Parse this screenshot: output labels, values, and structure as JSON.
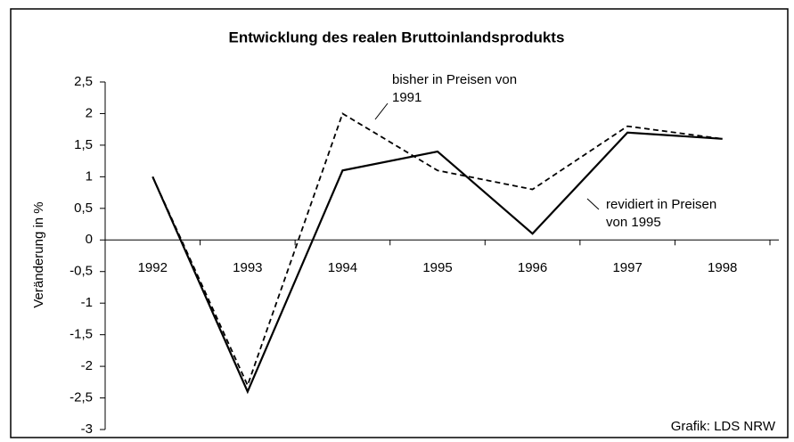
{
  "chart_data": {
    "type": "line",
    "title": "Entwicklung des realen Bruttoinlandsprodukts",
    "y_label": "Veränderung in %",
    "source": "Grafik: LDS NRW",
    "categories": [
      "1992",
      "1993",
      "1994",
      "1995",
      "1996",
      "1997",
      "1998"
    ],
    "series": [
      {
        "name": "bisher in Preisen von 1991",
        "color": "#000000",
        "style": "dashed",
        "values": [
          1,
          -2.3,
          2.0,
          1.1,
          0.8,
          1.8,
          1.6
        ]
      },
      {
        "name": "revidiert in Preisen von 1995",
        "color": "#000000",
        "style": "solid",
        "values": [
          1,
          -2.4,
          1.1,
          1.4,
          0.1,
          1.7,
          1.6
        ]
      }
    ],
    "ylim": [
      -3,
      2.5
    ],
    "yticks": [
      {
        "value": 2.5,
        "label": "2,5"
      },
      2,
      {
        "value": 1.5,
        "label": "1,5"
      },
      1,
      {
        "value": 0.5,
        "label": "0,5"
      },
      0,
      {
        "value": -0.5,
        "label": "-0,5"
      },
      -1,
      {
        "value": -1.5,
        "label": "-1,5"
      },
      -2,
      {
        "value": -2.5,
        "label": "-2,5"
      },
      -3
    ],
    "grid": false
  }
}
